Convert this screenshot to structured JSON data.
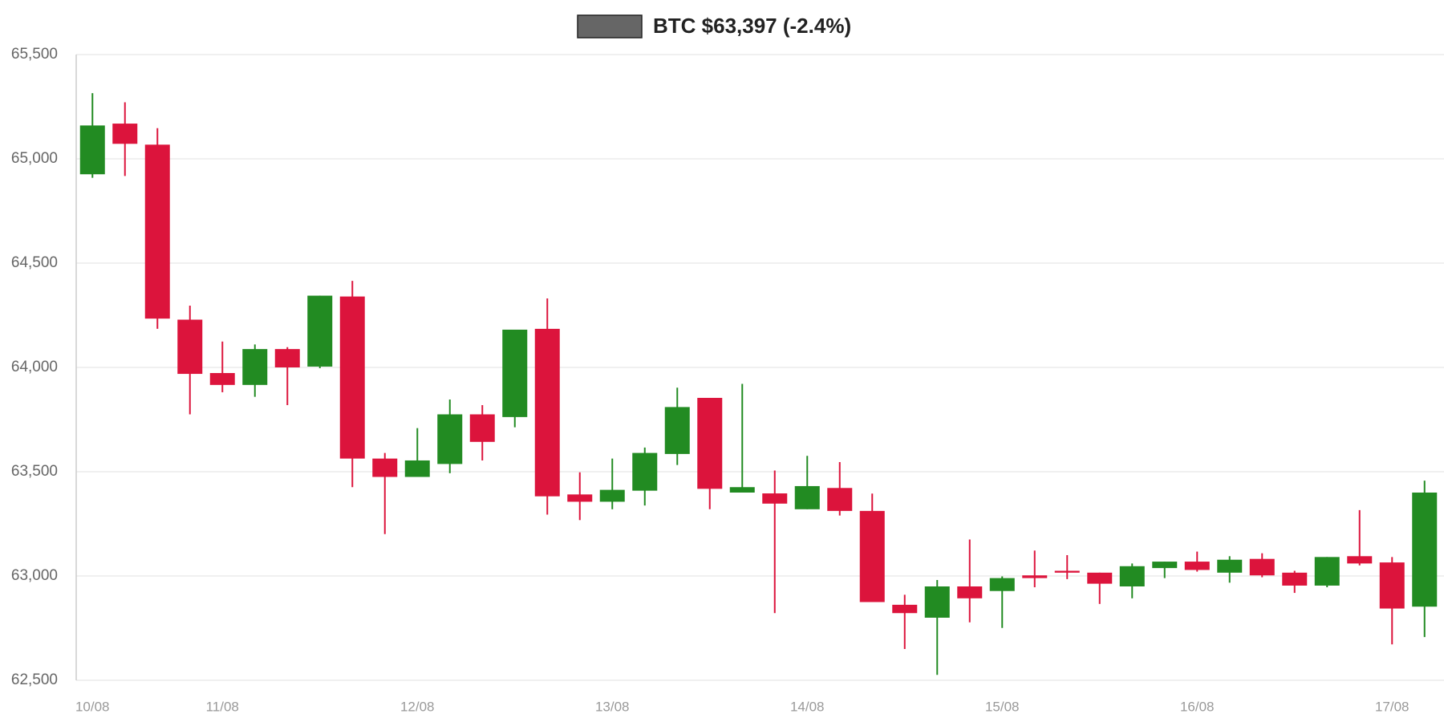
{
  "chart_data": {
    "type": "candlestick",
    "categories": [
      "10/08",
      null,
      null,
      null,
      "11/08",
      null,
      null,
      null,
      null,
      null,
      "12/08",
      null,
      null,
      null,
      null,
      null,
      "13/08",
      null,
      null,
      null,
      null,
      null,
      "14/08",
      null,
      null,
      null,
      null,
      null,
      "15/08",
      null,
      null,
      null,
      null,
      null,
      "16/08",
      null,
      null,
      null,
      null,
      null,
      "17/08",
      null
    ],
    "series": [
      {
        "name": "BTC $63,397 (-2.4%)",
        "color": "#666666",
        "up_color": "#228b22",
        "down_color": "#dc143c",
        "open": [
          64926,
          65169,
          65068,
          64229,
          63973,
          63916,
          64088,
          64004,
          64340,
          63563,
          63475,
          63537,
          63775,
          63762,
          64185,
          63391,
          63356,
          63409,
          63585,
          63854,
          63400,
          63396,
          63320,
          63422,
          63312,
          62862,
          62800,
          62950,
          62928,
          63003,
          63025,
          63016,
          62950,
          63038,
          63069,
          63016,
          63082,
          63016,
          62954,
          63095,
          63065,
          62853
        ],
        "high": [
          65315,
          65271,
          65147,
          64296,
          64124,
          64110,
          64097,
          64344,
          64415,
          63590,
          63709,
          63846,
          63819,
          64181,
          64331,
          63497,
          63563,
          63616,
          63903,
          63854,
          63921,
          63506,
          63576,
          63546,
          63395,
          62910,
          62981,
          63175,
          62998,
          63122,
          63100,
          63016,
          63060,
          63069,
          63117,
          63095,
          63109,
          63025,
          63091,
          63316,
          63091,
          63457
        ],
        "low": [
          64909,
          64918,
          64185,
          63775,
          63881,
          63859,
          63819,
          63996,
          63426,
          63201,
          63475,
          63493,
          63554,
          63713,
          63294,
          63268,
          63320,
          63338,
          63532,
          63320,
          63400,
          62822,
          63320,
          63290,
          62875,
          62650,
          62526,
          62778,
          62751,
          62946,
          62985,
          62866,
          62893,
          62990,
          63021,
          62968,
          62994,
          62919,
          62946,
          63051,
          62672,
          62707
        ],
        "close": [
          65160,
          65072,
          64234,
          63969,
          63916,
          64088,
          64000,
          64344,
          63563,
          63475,
          63554,
          63775,
          63643,
          64181,
          63382,
          63356,
          63413,
          63590,
          63810,
          63418,
          63426,
          63347,
          63431,
          63312,
          62875,
          62822,
          62950,
          62893,
          62990,
          62990,
          63016,
          62963,
          63047,
          63069,
          63029,
          63078,
          63003,
          62954,
          63091,
          63060,
          62844,
          63400
        ]
      }
    ],
    "ylim": [
      62500,
      65500
    ],
    "yticks": [
      {
        "value": 62500,
        "label": "62,500"
      },
      {
        "value": 63000,
        "label": "63,000"
      },
      {
        "value": 63500,
        "label": "63,500"
      },
      {
        "value": 64000,
        "label": "64,000"
      },
      {
        "value": 64500,
        "label": "64,500"
      },
      {
        "value": 65000,
        "label": "65,000"
      },
      {
        "value": 65500,
        "label": "65,500"
      }
    ],
    "grid": true
  }
}
